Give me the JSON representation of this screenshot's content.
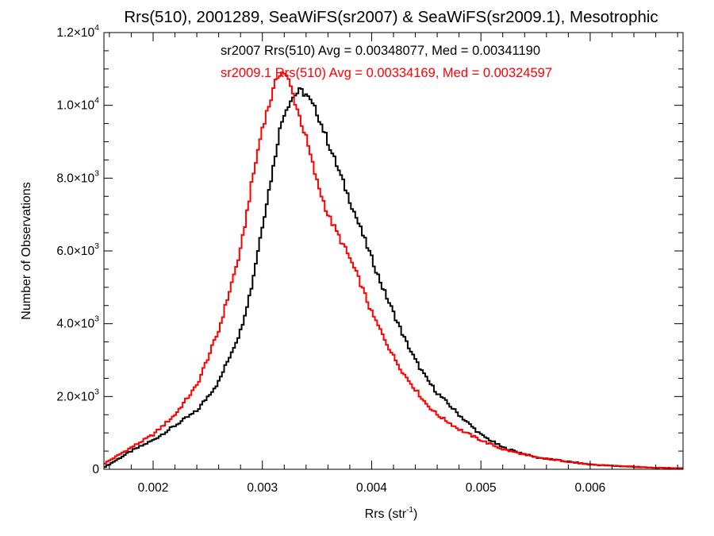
{
  "chart_data": {
    "type": "line",
    "title": "Rrs(510), 2001289, SeaWiFS(sr2007) & SeaWiFS(sr2009.1), Mesotrophic",
    "xlabel_main": "Rrs (str",
    "xlabel_sup": "-1",
    "xlabel_close": ")",
    "ylabel": "Number of Observations",
    "xlim": [
      0.00155,
      0.00685
    ],
    "ylim": [
      0,
      12000
    ],
    "x_ticks": [
      {
        "value": 0.002,
        "label": "0.002"
      },
      {
        "value": 0.003,
        "label": "0.003"
      },
      {
        "value": 0.004,
        "label": "0.004"
      },
      {
        "value": 0.005,
        "label": "0.005"
      },
      {
        "value": 0.006,
        "label": "0.006"
      }
    ],
    "y_ticks": [
      {
        "value": 0,
        "label": "0",
        "sup": ""
      },
      {
        "value": 2000,
        "label": "2.0×10",
        "sup": "3"
      },
      {
        "value": 4000,
        "label": "4.0×10",
        "sup": "3"
      },
      {
        "value": 6000,
        "label": "6.0×10",
        "sup": "3"
      },
      {
        "value": 8000,
        "label": "8.0×10",
        "sup": "3"
      },
      {
        "value": 10000,
        "label": "1.0×10",
        "sup": "4"
      },
      {
        "value": 12000,
        "label": "1.2×10",
        "sup": "4"
      }
    ],
    "annotations": [
      "sr2007 Rrs(510) Avg = 0.00348077, Med = 0.00341190",
      "sr2009.1 Rrs(510) Avg = 0.00334169, Med = 0.00324597"
    ],
    "grid": false,
    "series": [
      {
        "color": "#000000",
        "x": [
          0.00155,
          0.0018,
          0.002,
          0.0022,
          0.0024,
          0.0026,
          0.0028,
          0.0029,
          0.003,
          0.0031,
          0.00315,
          0.0032,
          0.00325,
          0.0033,
          0.00335,
          0.0034,
          0.0035,
          0.0036,
          0.0037,
          0.0038,
          0.0039,
          0.004,
          0.0041,
          0.0042,
          0.0043,
          0.0044,
          0.0045,
          0.0046,
          0.0048,
          0.005,
          0.0052,
          0.0055,
          0.006,
          0.0065,
          0.00685
        ],
        "y": [
          50,
          500,
          800,
          1200,
          1600,
          2400,
          3800,
          5000,
          6700,
          8300,
          9200,
          9800,
          10100,
          10300,
          10400,
          10300,
          9800,
          9000,
          8200,
          7400,
          6600,
          5800,
          5000,
          4300,
          3600,
          3000,
          2500,
          2100,
          1500,
          950,
          600,
          330,
          130,
          50,
          25
        ]
      },
      {
        "color": "#ff0000",
        "x": [
          0.00155,
          0.0018,
          0.002,
          0.0022,
          0.0024,
          0.0026,
          0.0027,
          0.0028,
          0.0029,
          0.003,
          0.0031,
          0.00315,
          0.0032,
          0.00325,
          0.0033,
          0.0034,
          0.0035,
          0.0036,
          0.0037,
          0.0038,
          0.0039,
          0.004,
          0.0041,
          0.0042,
          0.0043,
          0.0044,
          0.0045,
          0.0046,
          0.0048,
          0.005,
          0.0052,
          0.0055,
          0.006,
          0.0065,
          0.00685
        ],
        "y": [
          150,
          600,
          950,
          1500,
          2300,
          3800,
          4900,
          6000,
          7800,
          9400,
          10400,
          10900,
          10900,
          10600,
          10100,
          9100,
          7900,
          7000,
          6400,
          5800,
          5100,
          4300,
          3700,
          3100,
          2600,
          2200,
          1800,
          1500,
          1100,
          800,
          550,
          330,
          130,
          55,
          25
        ]
      }
    ]
  }
}
